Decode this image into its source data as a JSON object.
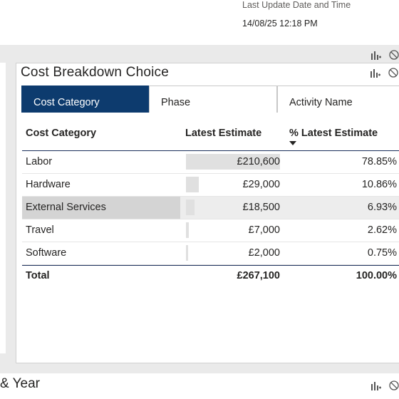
{
  "last_update": {
    "label": "Last Update Date and Time",
    "value": "14/08/25 12:18 PM"
  },
  "visual": {
    "title": "Cost Breakdown Choice",
    "slicer": {
      "options": [
        "Cost Category",
        "Phase",
        "Activity Name"
      ],
      "selected": "Cost Category"
    }
  },
  "table": {
    "headers": [
      "Cost Category",
      "Latest Estimate",
      "% Latest Estimate"
    ],
    "sort_column": "% Latest Estimate",
    "sort_direction": "descending",
    "rows": [
      {
        "name": "Labor",
        "estimate": "£210,600",
        "pct": "78.85%",
        "share": 0.7885
      },
      {
        "name": "Hardware",
        "estimate": "£29,000",
        "pct": "10.86%",
        "share": 0.1086
      },
      {
        "name": "External Services",
        "estimate": "£18,500",
        "pct": "6.93%",
        "share": 0.0693
      },
      {
        "name": "Travel",
        "estimate": "£7,000",
        "pct": "2.62%",
        "share": 0.0262
      },
      {
        "name": "Software",
        "estimate": "£2,000",
        "pct": "0.75%",
        "share": 0.0075
      }
    ],
    "highlighted_row": "External Services",
    "total": {
      "name": "Total",
      "estimate": "£267,100",
      "pct": "100.00%"
    }
  },
  "bottom_visual": {
    "title": "& Year"
  },
  "colors": {
    "selected_tile": "#0d3b6e",
    "header_rule": "#1a2e5a",
    "bar": "#e0e0e0",
    "highlight": "#d4d4d4"
  },
  "icons": [
    "focus-mode-icon",
    "filter-blocked-icon"
  ]
}
